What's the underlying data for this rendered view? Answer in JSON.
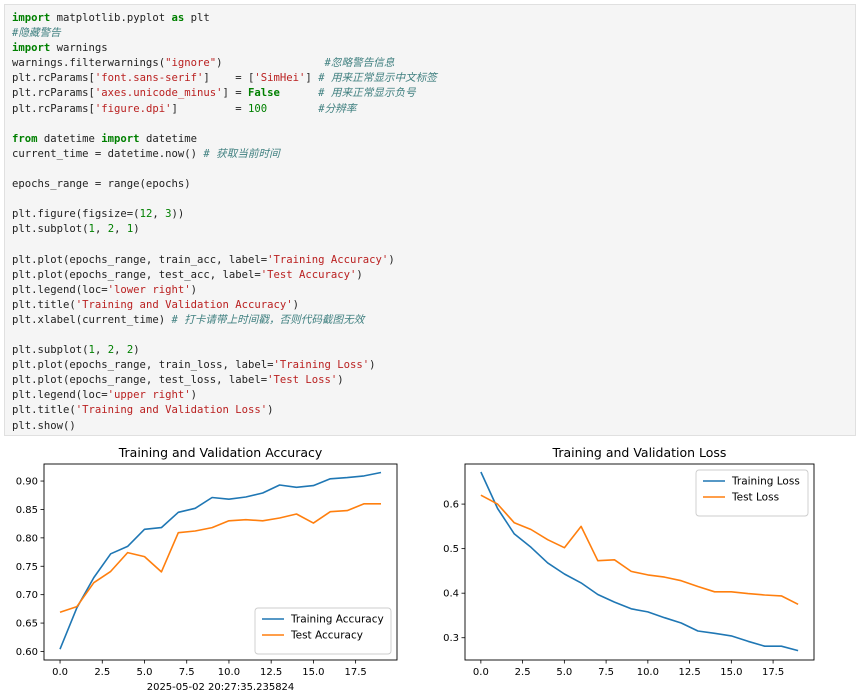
{
  "code_cell": {
    "lines": [
      [
        {
          "t": "import",
          "c": "kw"
        },
        {
          "t": " matplotlib.pyplot "
        },
        {
          "t": "as",
          "c": "kw"
        },
        {
          "t": " plt"
        }
      ],
      [
        {
          "t": "#隐藏警告",
          "c": "cm"
        }
      ],
      [
        {
          "t": "import",
          "c": "kw"
        },
        {
          "t": " warnings"
        }
      ],
      [
        {
          "t": "warnings.filterwarnings("
        },
        {
          "t": "\"ignore\"",
          "c": "st"
        },
        {
          "t": ")                "
        },
        {
          "t": "#忽略警告信息",
          "c": "cm"
        }
      ],
      [
        {
          "t": "plt.rcParams["
        },
        {
          "t": "'font.sans-serif'",
          "c": "st"
        },
        {
          "t": "]    = ["
        },
        {
          "t": "'SimHei'",
          "c": "st"
        },
        {
          "t": "] "
        },
        {
          "t": "# 用来正常显示中文标签",
          "c": "cm"
        }
      ],
      [
        {
          "t": "plt.rcParams["
        },
        {
          "t": "'axes.unicode_minus'",
          "c": "st"
        },
        {
          "t": "] = "
        },
        {
          "t": "False",
          "c": "kw"
        },
        {
          "t": "      "
        },
        {
          "t": "# 用来正常显示负号",
          "c": "cm"
        }
      ],
      [
        {
          "t": "plt.rcParams["
        },
        {
          "t": "'figure.dpi'",
          "c": "st"
        },
        {
          "t": "]         = "
        },
        {
          "t": "100",
          "c": "nm"
        },
        {
          "t": "        "
        },
        {
          "t": "#分辨率",
          "c": "cm"
        }
      ],
      [
        {
          "t": ""
        }
      ],
      [
        {
          "t": "from",
          "c": "kw"
        },
        {
          "t": " datetime "
        },
        {
          "t": "import",
          "c": "kw"
        },
        {
          "t": " datetime"
        }
      ],
      [
        {
          "t": "current_time = datetime.now() "
        },
        {
          "t": "# 获取当前时间",
          "c": "cm"
        }
      ],
      [
        {
          "t": ""
        }
      ],
      [
        {
          "t": "epochs_range = range(epochs)"
        }
      ],
      [
        {
          "t": ""
        }
      ],
      [
        {
          "t": "plt.figure(figsize=("
        },
        {
          "t": "12",
          "c": "nm"
        },
        {
          "t": ", "
        },
        {
          "t": "3",
          "c": "nm"
        },
        {
          "t": "))"
        }
      ],
      [
        {
          "t": "plt.subplot("
        },
        {
          "t": "1",
          "c": "nm"
        },
        {
          "t": ", "
        },
        {
          "t": "2",
          "c": "nm"
        },
        {
          "t": ", "
        },
        {
          "t": "1",
          "c": "nm"
        },
        {
          "t": ")"
        }
      ],
      [
        {
          "t": ""
        }
      ],
      [
        {
          "t": "plt.plot(epochs_range, train_acc, label="
        },
        {
          "t": "'Training Accuracy'",
          "c": "st"
        },
        {
          "t": ")"
        }
      ],
      [
        {
          "t": "plt.plot(epochs_range, test_acc, label="
        },
        {
          "t": "'Test Accuracy'",
          "c": "st"
        },
        {
          "t": ")"
        }
      ],
      [
        {
          "t": "plt.legend(loc="
        },
        {
          "t": "'lower right'",
          "c": "st"
        },
        {
          "t": ")"
        }
      ],
      [
        {
          "t": "plt.title("
        },
        {
          "t": "'Training and Validation Accuracy'",
          "c": "st"
        },
        {
          "t": ")"
        }
      ],
      [
        {
          "t": "plt.xlabel(current_time) "
        },
        {
          "t": "# 打卡请带上时间戳，否则代码截图无效",
          "c": "cm"
        }
      ],
      [
        {
          "t": ""
        }
      ],
      [
        {
          "t": "plt.subplot("
        },
        {
          "t": "1",
          "c": "nm"
        },
        {
          "t": ", "
        },
        {
          "t": "2",
          "c": "nm"
        },
        {
          "t": ", "
        },
        {
          "t": "2",
          "c": "nm"
        },
        {
          "t": ")"
        }
      ],
      [
        {
          "t": "plt.plot(epochs_range, train_loss, label="
        },
        {
          "t": "'Training Loss'",
          "c": "st"
        },
        {
          "t": ")"
        }
      ],
      [
        {
          "t": "plt.plot(epochs_range, test_loss, label="
        },
        {
          "t": "'Test Loss'",
          "c": "st"
        },
        {
          "t": ")"
        }
      ],
      [
        {
          "t": "plt.legend(loc="
        },
        {
          "t": "'upper right'",
          "c": "st"
        },
        {
          "t": ")"
        }
      ],
      [
        {
          "t": "plt.title("
        },
        {
          "t": "'Training and Validation Loss'",
          "c": "st"
        },
        {
          "t": ")"
        }
      ],
      [
        {
          "t": "plt.show()"
        }
      ]
    ]
  },
  "chart_data": [
    {
      "type": "line",
      "title": "Training and Validation Accuracy",
      "xlabel": "2025-05-02 20:27:35.235824",
      "ylabel": "",
      "xlim": [
        -0.95,
        19.95
      ],
      "ylim": [
        0.585,
        0.93
      ],
      "xticks": [
        0,
        2.5,
        5,
        7.5,
        10,
        12.5,
        15,
        17.5
      ],
      "xtick_labels": [
        "0.0",
        "2.5",
        "5.0",
        "7.5",
        "10.0",
        "12.5",
        "15.0",
        "17.5"
      ],
      "yticks": [
        0.6,
        0.65,
        0.7,
        0.75,
        0.8,
        0.85,
        0.9
      ],
      "ytick_labels": [
        "0.60",
        "0.65",
        "0.70",
        "0.75",
        "0.80",
        "0.85",
        "0.90"
      ],
      "grid": false,
      "legend": "lower right",
      "x": [
        0,
        1,
        2,
        3,
        4,
        5,
        6,
        7,
        8,
        9,
        10,
        11,
        12,
        13,
        14,
        15,
        16,
        17,
        18,
        19
      ],
      "series": [
        {
          "name": "Training Accuracy",
          "color": "#1f77b4",
          "values": [
            0.604,
            0.677,
            0.73,
            0.772,
            0.785,
            0.815,
            0.818,
            0.845,
            0.852,
            0.871,
            0.868,
            0.872,
            0.879,
            0.893,
            0.889,
            0.892,
            0.904,
            0.906,
            0.909,
            0.915
          ]
        },
        {
          "name": "Test Accuracy",
          "color": "#ff7f0e",
          "values": [
            0.669,
            0.679,
            0.721,
            0.741,
            0.774,
            0.767,
            0.74,
            0.809,
            0.812,
            0.818,
            0.83,
            0.832,
            0.83,
            0.835,
            0.842,
            0.826,
            0.846,
            0.848,
            0.86,
            0.86
          ]
        }
      ]
    },
    {
      "type": "line",
      "title": "Training and Validation Loss",
      "xlabel": "",
      "ylabel": "",
      "xlim": [
        -0.95,
        19.95
      ],
      "ylim": [
        0.25,
        0.69
      ],
      "xticks": [
        0,
        2.5,
        5,
        7.5,
        10,
        12.5,
        15,
        17.5
      ],
      "xtick_labels": [
        "0.0",
        "2.5",
        "5.0",
        "7.5",
        "10.0",
        "12.5",
        "15.0",
        "17.5"
      ],
      "yticks": [
        0.3,
        0.4,
        0.5,
        0.6
      ],
      "ytick_labels": [
        "0.3",
        "0.4",
        "0.5",
        "0.6"
      ],
      "grid": false,
      "legend": "upper right",
      "x": [
        0,
        1,
        2,
        3,
        4,
        5,
        6,
        7,
        8,
        9,
        10,
        11,
        12,
        13,
        14,
        15,
        16,
        17,
        18,
        19
      ],
      "series": [
        {
          "name": "Training Loss",
          "color": "#1f77b4",
          "values": [
            0.672,
            0.59,
            0.533,
            0.503,
            0.468,
            0.443,
            0.423,
            0.397,
            0.38,
            0.365,
            0.358,
            0.345,
            0.333,
            0.315,
            0.31,
            0.304,
            0.292,
            0.281,
            0.281,
            0.271
          ]
        },
        {
          "name": "Test Loss",
          "color": "#ff7f0e",
          "values": [
            0.62,
            0.6,
            0.558,
            0.543,
            0.52,
            0.502,
            0.55,
            0.473,
            0.475,
            0.449,
            0.441,
            0.436,
            0.428,
            0.415,
            0.403,
            0.403,
            0.399,
            0.396,
            0.394,
            0.375
          ]
        }
      ]
    }
  ]
}
